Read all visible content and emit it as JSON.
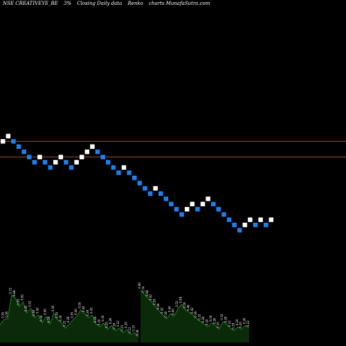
{
  "header": {
    "ticker": "NSE CREATIVEYE_BE",
    "box_size": "3%",
    "description": "Closing Daily data",
    "chart_name": "Renko",
    "credit": "charts MunafaSutra.com"
  },
  "colors": {
    "background": "#000000",
    "up_brick": "#ffffff",
    "down_brick": "#1e7ff0",
    "level_line": "#a0522d",
    "volume_fill": "#0a2a0a",
    "volume_line": "#1f7a1f"
  },
  "chart_data": {
    "type": "renko",
    "bricks": [
      {
        "dir": "up",
        "level": 10
      },
      {
        "dir": "up",
        "level": 11
      },
      {
        "dir": "down",
        "level": 10
      },
      {
        "dir": "down",
        "level": 9
      },
      {
        "dir": "down",
        "level": 8
      },
      {
        "dir": "down",
        "level": 7
      },
      {
        "dir": "down",
        "level": 6
      },
      {
        "dir": "up",
        "level": 7
      },
      {
        "dir": "down",
        "level": 6
      },
      {
        "dir": "down",
        "level": 5
      },
      {
        "dir": "up",
        "level": 6
      },
      {
        "dir": "up",
        "level": 7
      },
      {
        "dir": "down",
        "level": 6
      },
      {
        "dir": "down",
        "level": 5
      },
      {
        "dir": "up",
        "level": 6
      },
      {
        "dir": "up",
        "level": 7
      },
      {
        "dir": "up",
        "level": 8
      },
      {
        "dir": "up",
        "level": 9
      },
      {
        "dir": "down",
        "level": 8
      },
      {
        "dir": "down",
        "level": 7
      },
      {
        "dir": "down",
        "level": 6
      },
      {
        "dir": "down",
        "level": 5
      },
      {
        "dir": "down",
        "level": 4
      },
      {
        "dir": "up",
        "level": 5
      },
      {
        "dir": "down",
        "level": 4
      },
      {
        "dir": "down",
        "level": 3
      },
      {
        "dir": "down",
        "level": 2
      },
      {
        "dir": "down",
        "level": 1
      },
      {
        "dir": "down",
        "level": 0
      },
      {
        "dir": "up",
        "level": 1
      },
      {
        "dir": "down",
        "level": 0
      },
      {
        "dir": "down",
        "level": -1
      },
      {
        "dir": "down",
        "level": -2
      },
      {
        "dir": "down",
        "level": -3
      },
      {
        "dir": "down",
        "level": -4
      },
      {
        "dir": "up",
        "level": -3
      },
      {
        "dir": "up",
        "level": -2
      },
      {
        "dir": "down",
        "level": -3
      },
      {
        "dir": "up",
        "level": -2
      },
      {
        "dir": "up",
        "level": -1
      },
      {
        "dir": "down",
        "level": -2
      },
      {
        "dir": "down",
        "level": -3
      },
      {
        "dir": "down",
        "level": -4
      },
      {
        "dir": "down",
        "level": -5
      },
      {
        "dir": "down",
        "level": -6
      },
      {
        "dir": "down",
        "level": -7
      },
      {
        "dir": "up",
        "level": -6
      },
      {
        "dir": "up",
        "level": -5
      },
      {
        "dir": "down",
        "level": -6
      },
      {
        "dir": "up",
        "level": -5
      },
      {
        "dir": "down",
        "level": -6
      },
      {
        "dir": "up",
        "level": -5
      }
    ],
    "level_lines": [
      10,
      7
    ],
    "volume_segments": [
      {
        "values": [
          0.27,
          0.35,
          0.36,
          0.72,
          0.68,
          0.55,
          0.62,
          0.45,
          0.52,
          0.38,
          0.42,
          0.3,
          0.4,
          0.28,
          0.45,
          0.35,
          0.3,
          0.22,
          0.28,
          0.35,
          0.4,
          0.5,
          0.44,
          0.38,
          0.42,
          0.28,
          0.24,
          0.3,
          0.2,
          0.26,
          0.18,
          0.22,
          0.15,
          0.2,
          0.12,
          0.15,
          0.08
        ],
        "labels": [
          "0.27",
          "0.35",
          "0.36",
          "0.72",
          "0.68",
          "0.55",
          "0.62",
          "0.45",
          "0.52",
          "0.38",
          "0.42",
          "0.30",
          "0.40",
          "0.28",
          "0.45",
          "0.35",
          "0.30",
          "0.22",
          "0.28",
          "0.35",
          "0.40",
          "0.50",
          "0.44",
          "0.38",
          "0.42",
          "0.28",
          "0.24",
          "0.30",
          "0.20",
          "0.26",
          "0.18",
          "0.22",
          "0.15",
          "0.20",
          "0.12",
          "0.15",
          "0.08"
        ]
      },
      {
        "values": [
          0.8,
          0.74,
          0.68,
          0.62,
          0.55,
          0.48,
          0.42,
          0.36,
          0.44,
          0.4,
          0.52,
          0.58,
          0.5,
          0.46,
          0.42,
          0.36,
          0.32,
          0.28,
          0.24,
          0.3,
          0.26,
          0.2,
          0.32,
          0.28,
          0.22,
          0.18,
          0.24,
          0.2,
          0.26,
          0.22
        ],
        "labels": [
          "0.80",
          "0.74",
          "0.68",
          "0.62",
          "0.55",
          "0.48",
          "0.42",
          "0.36",
          "0.44",
          "0.40",
          "0.52",
          "0.58",
          "0.50",
          "0.46",
          "0.42",
          "0.36",
          "0.32",
          "0.28",
          "0.24",
          "0.30",
          "0.26",
          "0.20",
          "0.32",
          "0.28",
          "0.22",
          "0.18",
          "0.24",
          "0.20",
          "0.26",
          "0.22"
        ]
      }
    ]
  }
}
